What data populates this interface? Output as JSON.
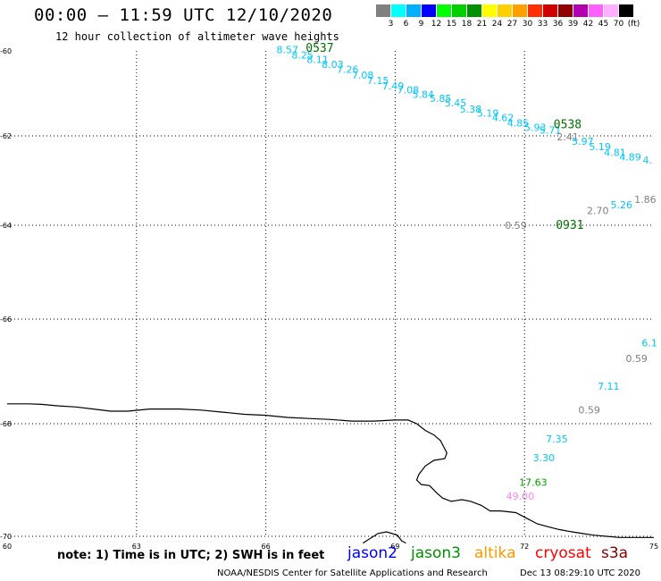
{
  "header": {
    "title": "00:00 — 11:59 UTC 12/10/2020",
    "subtitle": "12 hour collection of altimeter wave heights"
  },
  "legend": {
    "colors": [
      "#808080",
      "#00ffff",
      "#00b0ff",
      "#0000ff",
      "#00ff00",
      "#00d000",
      "#009000",
      "#ffff00",
      "#ffd000",
      "#ffa000",
      "#ff3000",
      "#d00000",
      "#900000",
      "#b000b0",
      "#ff60ff",
      "#ffb0ff",
      "#000000"
    ],
    "labels": [
      "3",
      "6",
      "9",
      "12",
      "15",
      "18",
      "21",
      "24",
      "27",
      "30",
      "33",
      "36",
      "39",
      "42",
      "45",
      "70",
      "(ft)"
    ]
  },
  "map": {
    "lat_ticks": [
      "-60",
      "-62",
      "-64",
      "-66",
      "-68",
      "-70"
    ],
    "lon_ticks": [
      "60",
      "63",
      "66",
      "69",
      "72",
      "75"
    ],
    "grid": "dotted"
  },
  "observations": [
    {
      "text": "8.57",
      "lon": 66.5,
      "lat": -60.05,
      "color": "#00c8ff"
    },
    {
      "text": "8.25",
      "lon": 66.85,
      "lat": -60.18,
      "color": "#00c8ff"
    },
    {
      "text": "8.11",
      "lon": 67.2,
      "lat": -60.28,
      "color": "#00c8ff"
    },
    {
      "text": "8.03",
      "lon": 67.55,
      "lat": -60.4,
      "color": "#00c8ff"
    },
    {
      "text": "7.26",
      "lon": 67.9,
      "lat": -60.52,
      "color": "#00c8ff"
    },
    {
      "text": "7.08",
      "lon": 68.25,
      "lat": -60.65,
      "color": "#00c8ff"
    },
    {
      "text": "7.15",
      "lon": 68.6,
      "lat": -60.78,
      "color": "#00c8ff"
    },
    {
      "text": "7.49",
      "lon": 68.95,
      "lat": -60.9,
      "color": "#00c8ff"
    },
    {
      "text": "7.08",
      "lon": 69.3,
      "lat": -61.0,
      "color": "#00c8ff"
    },
    {
      "text": "5.84",
      "lon": 69.65,
      "lat": -61.1,
      "color": "#00c8ff"
    },
    {
      "text": "5.85",
      "lon": 70.05,
      "lat": -61.2,
      "color": "#00c8ff"
    },
    {
      "text": "5.45",
      "lon": 70.4,
      "lat": -61.3,
      "color": "#00c8ff"
    },
    {
      "text": "5.38",
      "lon": 70.75,
      "lat": -61.45,
      "color": "#00c8ff"
    },
    {
      "text": "5.19",
      "lon": 71.15,
      "lat": -61.55,
      "color": "#00c8ff"
    },
    {
      "text": "4.62",
      "lon": 71.5,
      "lat": -61.65,
      "color": "#00c8ff"
    },
    {
      "text": "4.85",
      "lon": 71.85,
      "lat": -61.78,
      "color": "#00c8ff"
    },
    {
      "text": "5.93",
      "lon": 72.25,
      "lat": -61.88,
      "color": "#00c8ff"
    },
    {
      "text": "5.71",
      "lon": 72.6,
      "lat": -61.95,
      "color": "#00c8ff"
    },
    {
      "text": "2.41",
      "lon": 73.0,
      "lat": -62.1,
      "color": "#808080"
    },
    {
      "text": "5.97",
      "lon": 73.35,
      "lat": -62.2,
      "color": "#00c8ff"
    },
    {
      "text": "5.19",
      "lon": 73.75,
      "lat": -62.32,
      "color": "#00c8ff"
    },
    {
      "text": "4.81",
      "lon": 74.1,
      "lat": -62.45,
      "color": "#00c8ff"
    },
    {
      "text": "4.89",
      "lon": 74.45,
      "lat": -62.55,
      "color": "#00c8ff"
    },
    {
      "text": "4.",
      "lon": 74.85,
      "lat": -62.62,
      "color": "#00c8ff"
    },
    {
      "text": "1.86",
      "lon": 74.8,
      "lat": -63.5,
      "color": "#808080"
    },
    {
      "text": "5.26",
      "lon": 74.25,
      "lat": -63.62,
      "color": "#00c8ff"
    },
    {
      "text": "2.70",
      "lon": 73.7,
      "lat": -63.75,
      "color": "#808080"
    },
    {
      "text": "0.59",
      "lon": 71.8,
      "lat": -64.08,
      "color": "#808080"
    },
    {
      "text": "6.1",
      "lon": 74.9,
      "lat": -66.52,
      "color": "#00c8ff"
    },
    {
      "text": "0.59",
      "lon": 74.6,
      "lat": -66.82,
      "color": "#808080"
    },
    {
      "text": "7.11",
      "lon": 73.95,
      "lat": -67.35,
      "color": "#00c8ff"
    },
    {
      "text": "0.59",
      "lon": 73.5,
      "lat": -67.8,
      "color": "#808080"
    },
    {
      "text": "7.35",
      "lon": 72.75,
      "lat": -68.33,
      "color": "#00c8ff"
    },
    {
      "text": "3.30",
      "lon": 72.45,
      "lat": -68.67,
      "color": "#00c8ff"
    },
    {
      "text": "17.63",
      "lon": 72.2,
      "lat": -69.1,
      "color": "#00a000"
    },
    {
      "text": "49.00",
      "lon": 71.9,
      "lat": -69.35,
      "color": "#ff80ff"
    }
  ],
  "pass_times": [
    {
      "text": "0537",
      "lon": 67.25,
      "lat": -60.02,
      "color": "#007000"
    },
    {
      "text": "0538",
      "lon": 73.0,
      "lat": -61.82,
      "color": "#007000"
    },
    {
      "text": "0931",
      "lon": 73.05,
      "lat": -64.08,
      "color": "#007000"
    }
  ],
  "coastline": [
    [
      60,
      -67.62
    ],
    [
      60.5,
      -67.62
    ],
    [
      60.8,
      -67.63
    ],
    [
      61.2,
      -67.66
    ],
    [
      61.6,
      -67.68
    ],
    [
      62,
      -67.72
    ],
    [
      62.4,
      -67.76
    ],
    [
      62.8,
      -67.76
    ],
    [
      63.3,
      -67.72
    ],
    [
      64,
      -67.72
    ],
    [
      64.5,
      -67.74
    ],
    [
      65,
      -67.78
    ],
    [
      65.5,
      -67.82
    ],
    [
      66,
      -67.84
    ],
    [
      66.5,
      -67.88
    ],
    [
      67,
      -67.9
    ],
    [
      67.5,
      -67.92
    ],
    [
      68,
      -67.95
    ],
    [
      68.5,
      -67.95
    ],
    [
      69,
      -67.93
    ],
    [
      69.3,
      -67.93
    ],
    [
      69.5,
      -68.0
    ],
    [
      69.7,
      -68.12
    ],
    [
      69.9,
      -68.2
    ],
    [
      70.05,
      -68.3
    ],
    [
      70.2,
      -68.52
    ],
    [
      70.15,
      -68.62
    ],
    [
      69.9,
      -68.65
    ],
    [
      69.7,
      -68.75
    ],
    [
      69.55,
      -68.9
    ],
    [
      69.5,
      -69.0
    ],
    [
      69.6,
      -69.08
    ],
    [
      69.8,
      -69.1
    ],
    [
      69.95,
      -69.22
    ],
    [
      70.1,
      -69.32
    ],
    [
      70.3,
      -69.38
    ],
    [
      70.55,
      -69.35
    ],
    [
      70.75,
      -69.38
    ],
    [
      71.0,
      -69.45
    ],
    [
      71.2,
      -69.55
    ],
    [
      71.45,
      -69.55
    ],
    [
      71.8,
      -69.58
    ],
    [
      72.05,
      -69.68
    ],
    [
      72.3,
      -69.78
    ],
    [
      72.5,
      -69.82
    ],
    [
      72.8,
      -69.88
    ],
    [
      73.1,
      -69.92
    ],
    [
      73.35,
      -69.95
    ],
    [
      73.6,
      -69.98
    ],
    [
      73.9,
      -70.0
    ],
    [
      74.2,
      -70.02
    ],
    [
      74.5,
      -70.02
    ],
    [
      75,
      -70.02
    ]
  ],
  "island": [
    [
      68.25,
      -70.12
    ],
    [
      68.6,
      -69.95
    ],
    [
      68.8,
      -69.92
    ],
    [
      69.05,
      -69.98
    ],
    [
      69.15,
      -70.08
    ],
    [
      69.25,
      -70.12
    ]
  ],
  "footer": {
    "note": "note:  1) Time is in UTC;  2) SWH is in feet",
    "satellites": [
      {
        "name": "jason2",
        "color": "#0000ff"
      },
      {
        "name": "jason3",
        "color": "#009000"
      },
      {
        "name": "altika",
        "color": "#ff9900"
      },
      {
        "name": "cryosat",
        "color": "#ff0000"
      },
      {
        "name": "s3a",
        "color": "#800000"
      }
    ],
    "credit": "NOAA/NESDIS Center for Satellite Applications and Research",
    "timestamp": "Dec 13 08:29:10 UTC 2020"
  }
}
